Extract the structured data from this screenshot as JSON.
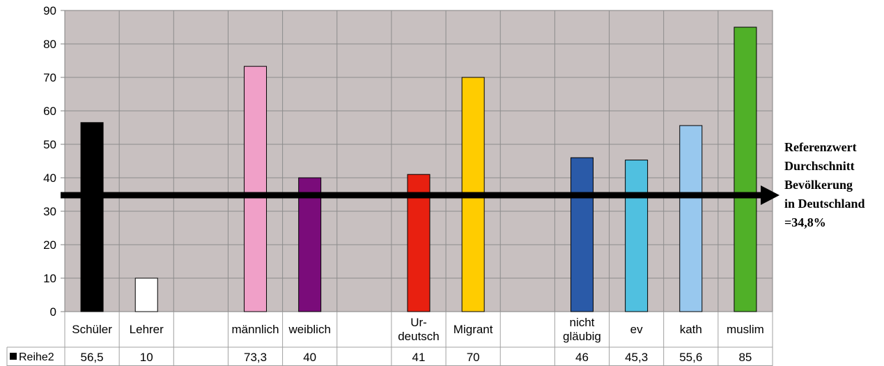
{
  "chart_data": {
    "type": "bar",
    "categories": [
      "Schüler",
      "Lehrer",
      "",
      "männlich",
      "weiblich",
      "",
      "Ur-\ndeutsch",
      "Migrant",
      "",
      "nicht\ngläubig",
      "ev",
      "kath",
      "muslim"
    ],
    "series": [
      {
        "name": "Reihe2",
        "values": [
          56.5,
          10,
          null,
          73.3,
          40,
          null,
          41,
          70,
          null,
          46,
          45.3,
          55.6,
          85
        ],
        "table_values": [
          "56,5",
          "10",
          "",
          "73,3",
          "40",
          "",
          "41",
          "70",
          "",
          "46",
          "45,3",
          "55,6",
          "85"
        ]
      }
    ],
    "bar_colors": [
      "#000000",
      "#ffffff",
      null,
      "#f0a0c8",
      "#7a0c7a",
      null,
      "#e82010",
      "#ffcc00",
      null,
      "#2a5aa8",
      "#50c0e0",
      "#98c8ee",
      "#50b028"
    ],
    "yticks": [
      0,
      10,
      20,
      30,
      40,
      50,
      60,
      70,
      80,
      90
    ],
    "ylim": [
      0,
      90
    ],
    "grid": true,
    "plot_background": "#c8c0c0",
    "reference_line": {
      "value": 34.8,
      "label_lines": [
        "Referenzwert",
        "Durchschnitt",
        "Bevölkerung",
        "in Deutschland",
        "=34,8%"
      ]
    }
  }
}
